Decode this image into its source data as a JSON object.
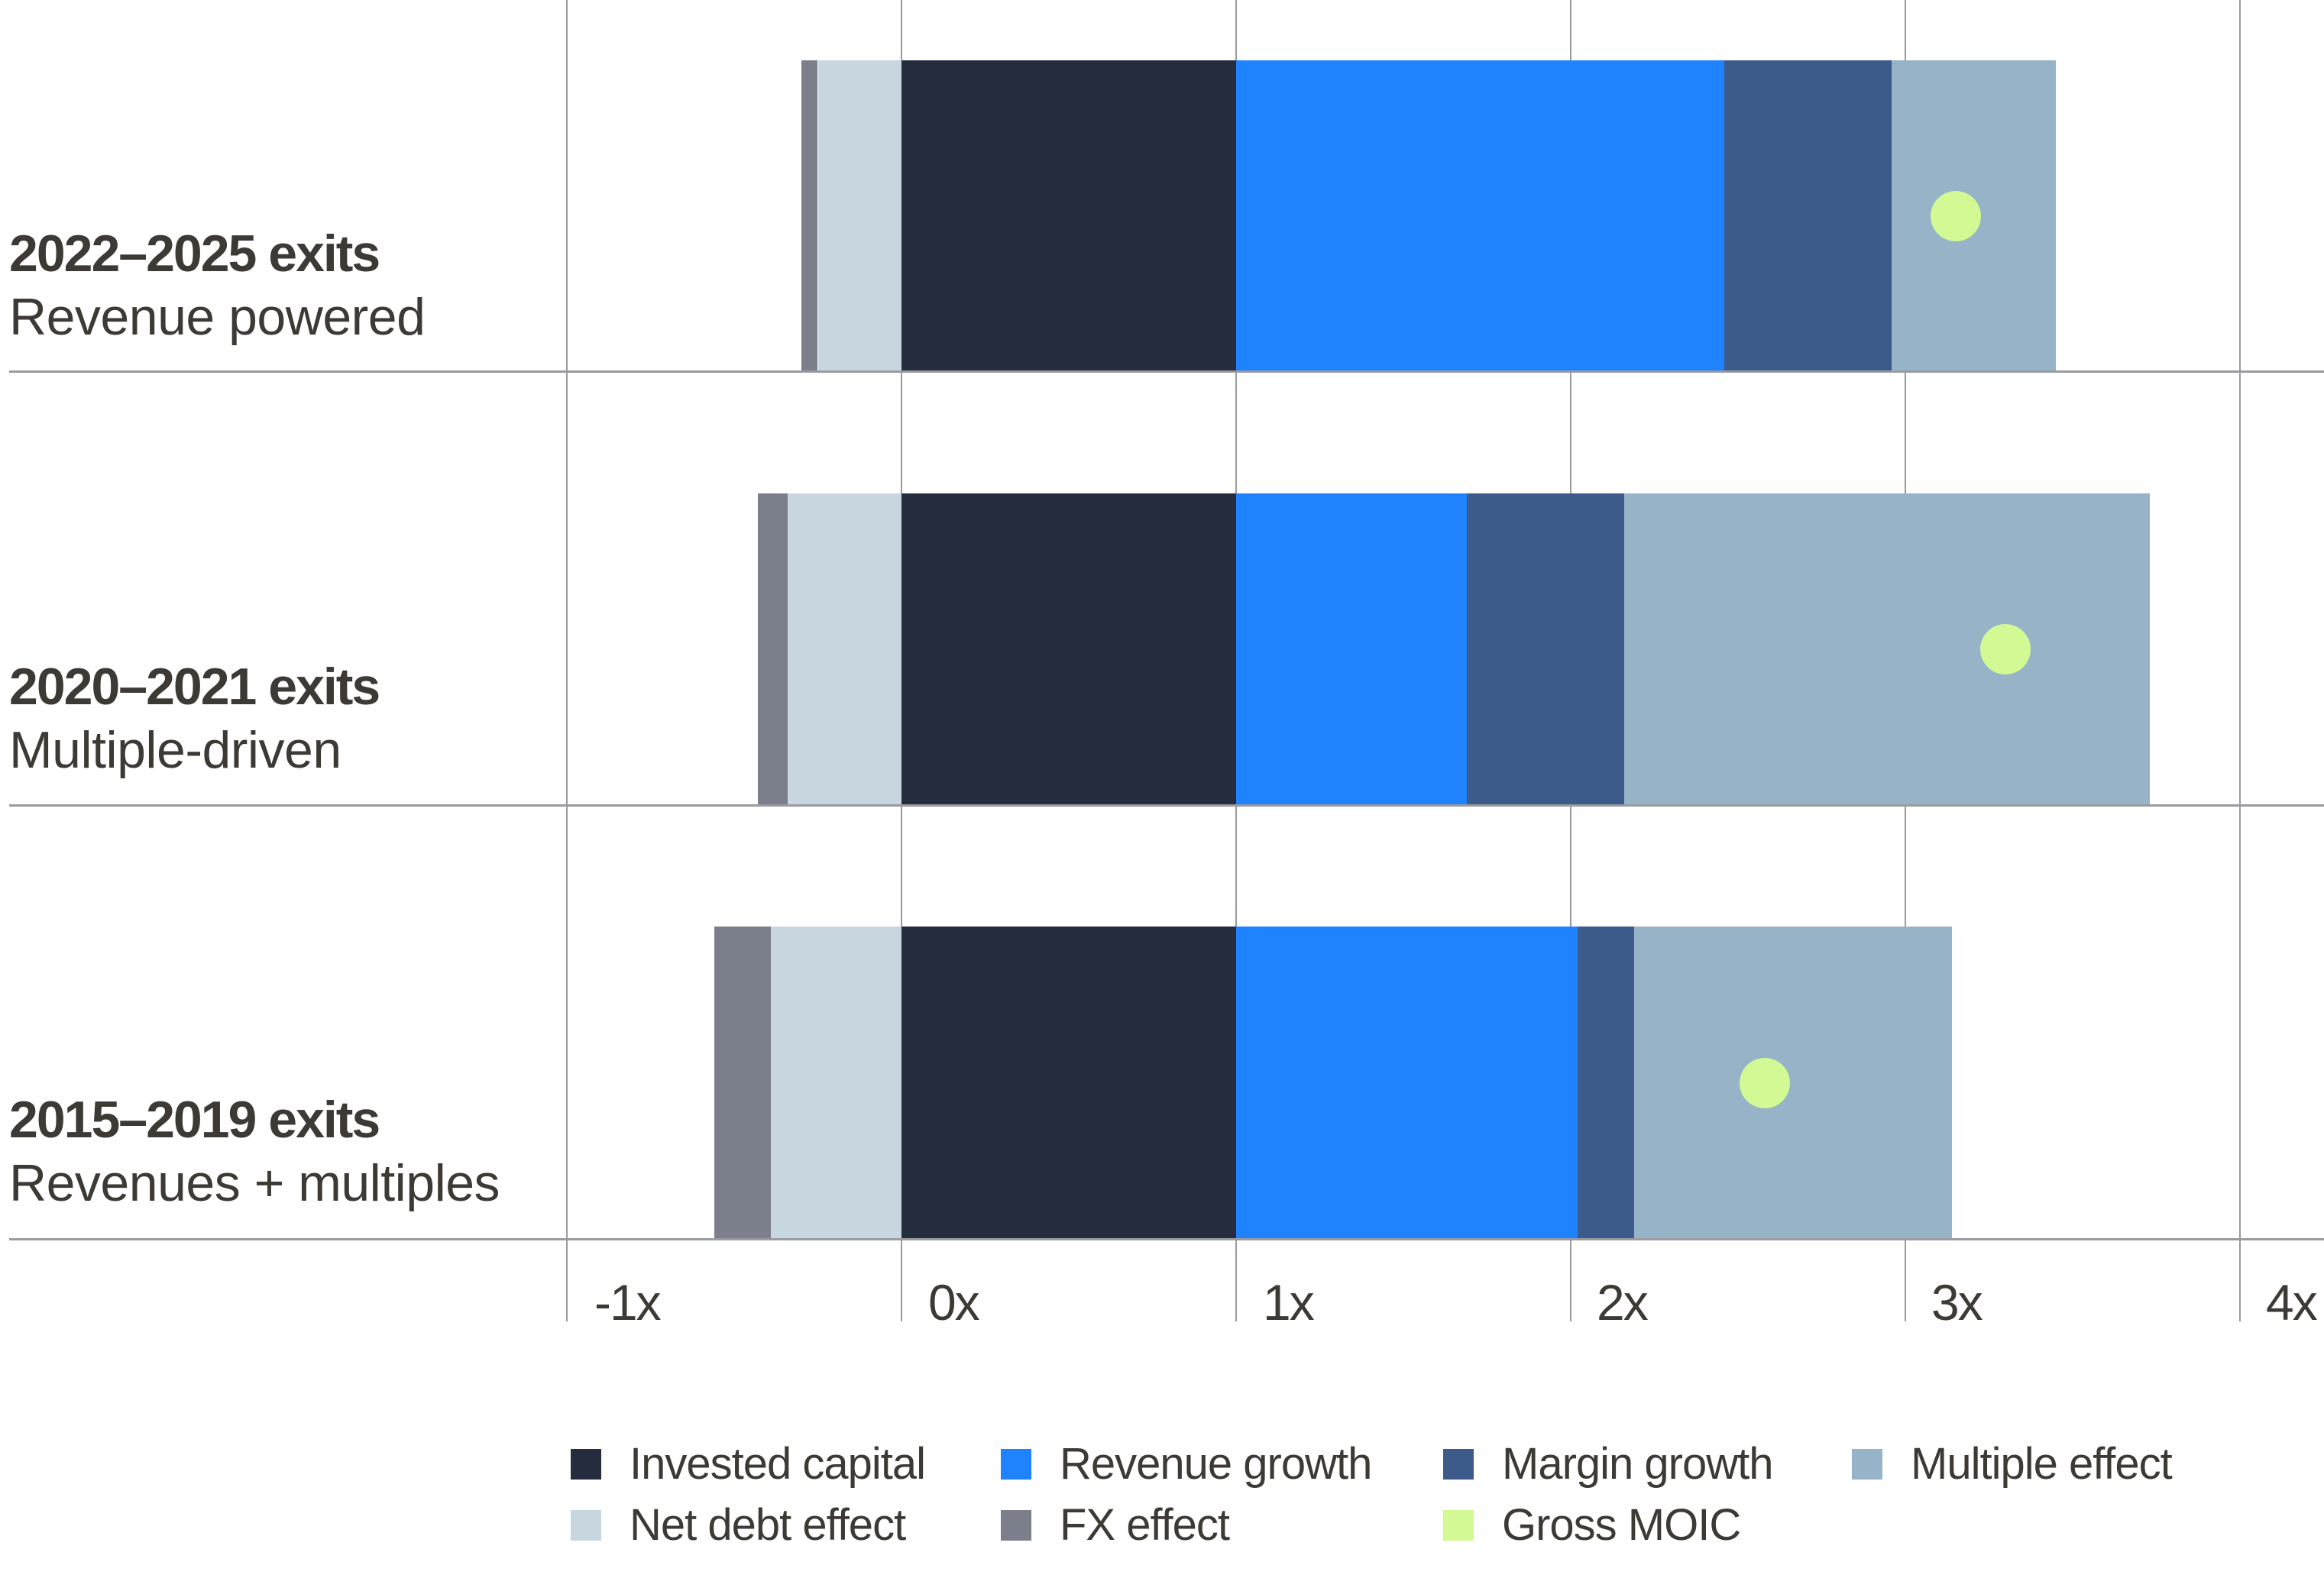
{
  "chart_data": {
    "type": "bar",
    "orientation": "horizontal",
    "stacked": true,
    "title": "",
    "xlabel": "",
    "ylabel": "",
    "xlim": [
      -1,
      4
    ],
    "x_ticks": [
      -1,
      0,
      1,
      2,
      3,
      4
    ],
    "x_tick_labels": [
      "-1x",
      "0x",
      "1x",
      "2x",
      "3x",
      "4x"
    ],
    "grid": {
      "vertical": true,
      "horizontal_separators": true
    },
    "legend_position": "bottom",
    "categories": [
      {
        "title": "2022–2025 exits",
        "subtitle": "Revenue powered"
      },
      {
        "title": "2020–2021 exits",
        "subtitle": "Multiple-driven"
      },
      {
        "title": "2015–2019 exits",
        "subtitle": "Revenues + multiples"
      }
    ],
    "negative_series": [
      {
        "name": "FX effect",
        "color": "#7b7f8b",
        "values": [
          -0.05,
          -0.09,
          -0.17
        ]
      },
      {
        "name": "Net debt effect",
        "color": "#c8d7df",
        "values": [
          -0.25,
          -0.34,
          -0.39
        ]
      }
    ],
    "series": [
      {
        "name": "Invested capital",
        "color": "#242c3e",
        "values": [
          1.0,
          1.0,
          1.0
        ]
      },
      {
        "name": "Revenue growth",
        "color": "#1f82ff",
        "values": [
          1.46,
          0.69,
          1.02
        ]
      },
      {
        "name": "Margin growth",
        "color": "#3c5a8a",
        "values": [
          0.5,
          0.47,
          0.17
        ]
      },
      {
        "name": "Multiple effect",
        "color": "#96b3c7",
        "values": [
          0.49,
          1.57,
          0.95
        ]
      }
    ],
    "markers": {
      "name": "Gross MOIC",
      "color": "#d2f993",
      "values": [
        3.15,
        3.3,
        2.58
      ]
    }
  },
  "legend": {
    "items": [
      {
        "label": "Invested capital",
        "color": "#242c3e"
      },
      {
        "label": "Revenue growth",
        "color": "#1f82ff"
      },
      {
        "label": "Margin growth",
        "color": "#3c5a8a"
      },
      {
        "label": "Multiple effect",
        "color": "#96b3c7"
      },
      {
        "label": "Net debt effect",
        "color": "#c8d7df"
      },
      {
        "label": "FX effect",
        "color": "#7b7f8b"
      },
      {
        "label": "Gross MOIC",
        "color": "#d2f993"
      }
    ]
  }
}
